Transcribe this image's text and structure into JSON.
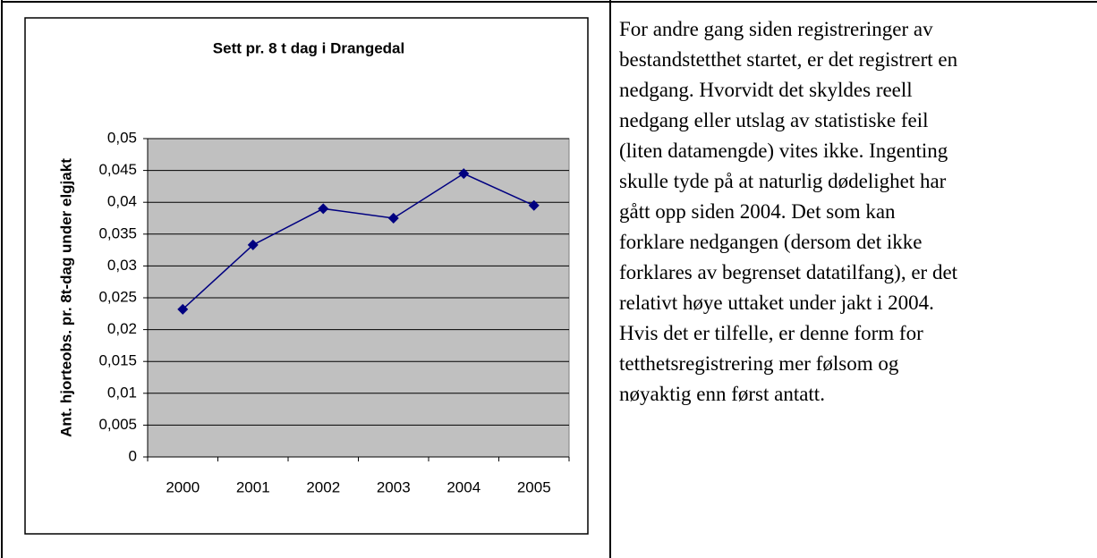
{
  "chart_data": {
    "type": "line",
    "title": "Sett pr. 8 t dag i Drangedal",
    "y_label": "Ant. hjorteobs. pr. 8t-dag under elgjakt",
    "categories": [
      "2000",
      "2001",
      "2002",
      "2003",
      "2004",
      "2005"
    ],
    "series": [
      {
        "name": "Sett pr. 8 t dag",
        "color": "#000080",
        "values": [
          0.0232,
          0.0333,
          0.039,
          0.0375,
          0.0445,
          0.0395
        ]
      }
    ],
    "ylim": [
      0,
      0.05
    ],
    "yticks": [
      0,
      {
        "value": 0.005,
        "label": "0,005"
      },
      {
        "value": 0.01,
        "label": "0,01"
      },
      {
        "value": 0.015,
        "label": "0,015"
      },
      {
        "value": 0.02,
        "label": "0,02"
      },
      {
        "value": 0.025,
        "label": "0,025"
      },
      {
        "value": 0.03,
        "label": "0,03"
      },
      {
        "value": 0.035,
        "label": "0,035"
      },
      {
        "value": 0.04,
        "label": "0,04"
      },
      {
        "value": 0.045,
        "label": "0,045"
      },
      {
        "value": 0.05,
        "label": "0,05"
      }
    ],
    "grid": true
  },
  "text_lines": [
    "For andre gang siden registreringer av",
    "bestandstetthet startet, er det registrert en",
    "nedgang. Hvorvidt det skyldes reell",
    "nedgang eller utslag av statistiske feil",
    "(liten datamengde) vites ikke. Ingenting",
    "skulle tyde på at naturlig dødelighet har",
    "gått opp siden 2004. Det som kan",
    "forklare nedgangen (dersom det ikke",
    "forklares av begrenset datatilfang), er det",
    "relativt høye uttaket under jakt i 2004.",
    "Hvis det er tilfelle, er denne form for",
    "tetthetsregistrering mer følsom og",
    "nøyaktig enn først antatt."
  ]
}
